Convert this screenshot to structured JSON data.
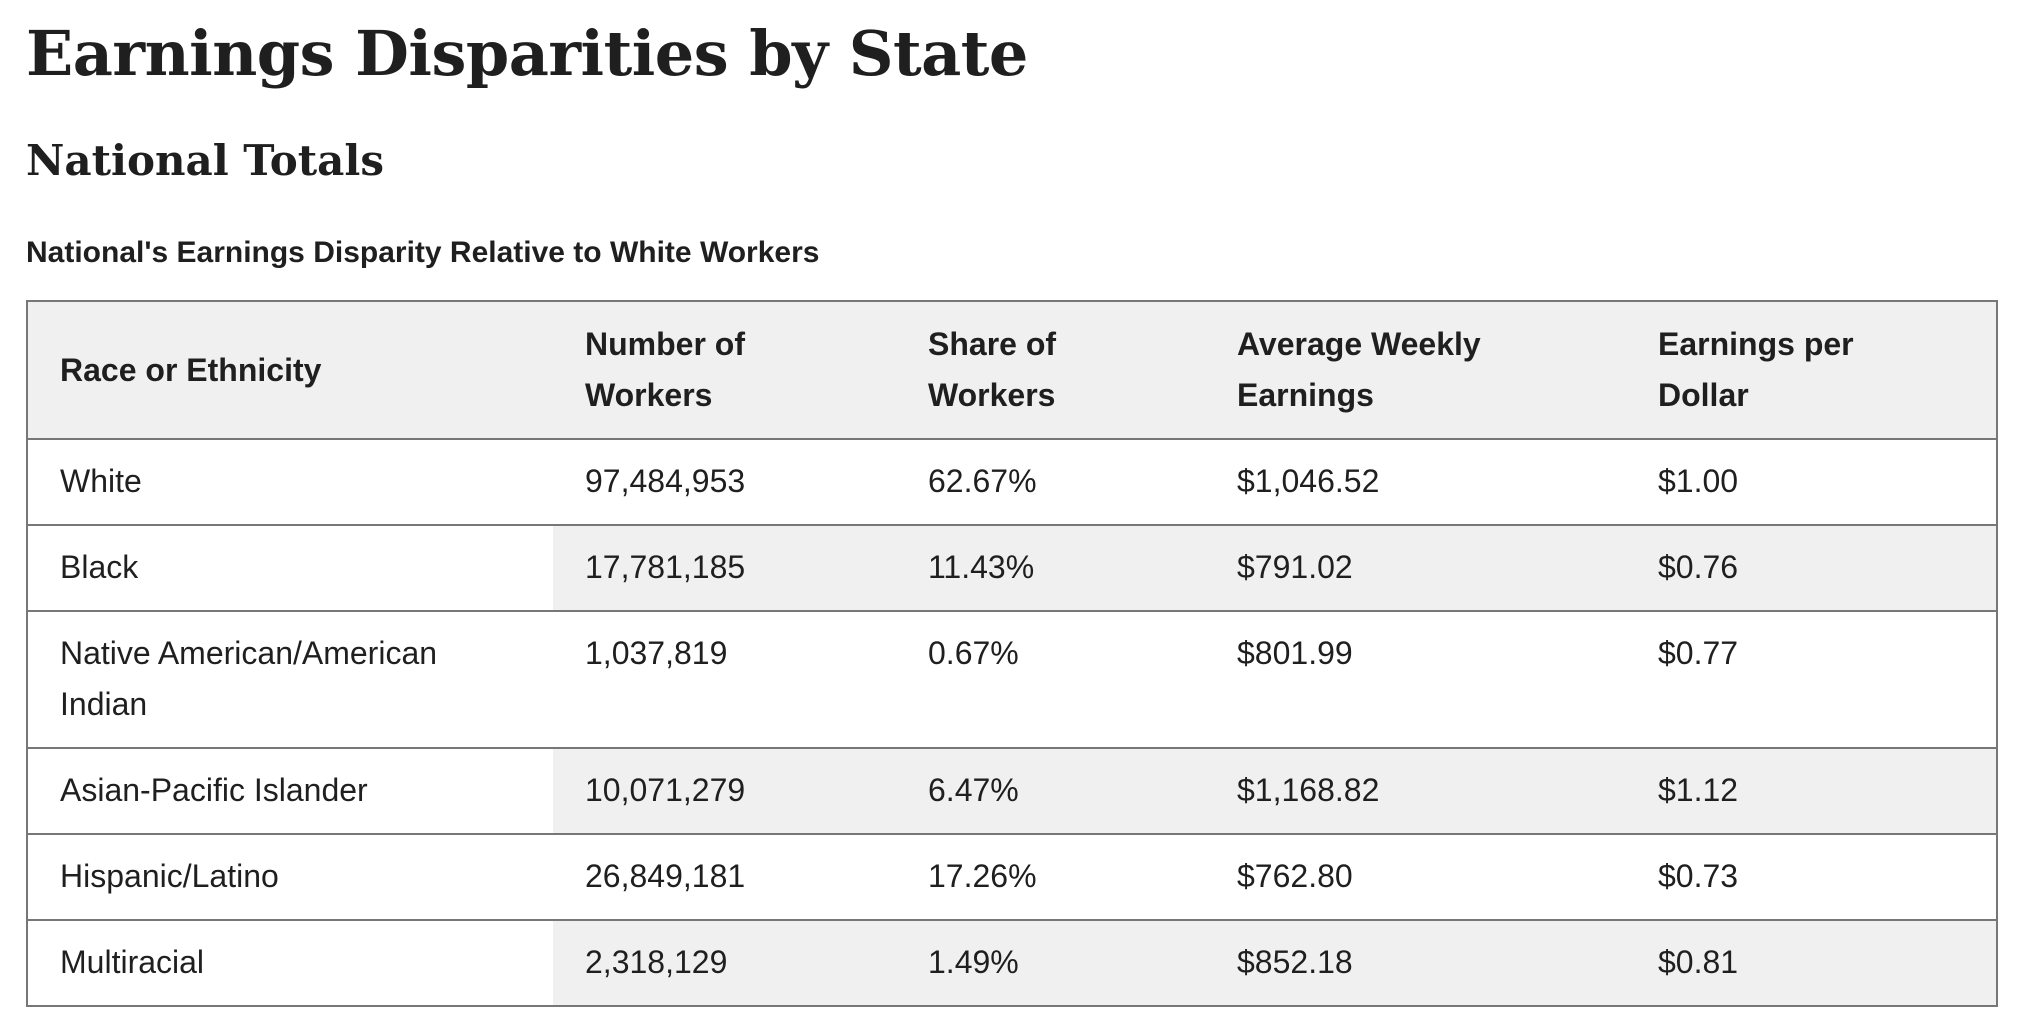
{
  "page": {
    "title": "Earnings Disparities by State",
    "section_title": "National Totals",
    "table_caption": "National's Earnings Disparity Relative to White Workers"
  },
  "table": {
    "headers": {
      "race": "Race or Ethnicity",
      "workers_line1": "Number of",
      "workers_line2": "Workers",
      "share_line1": "Share of",
      "share_line2": "Workers",
      "earnings_line1": "Average Weekly",
      "earnings_line2": "Earnings",
      "per_dollar_line1": "Earnings per",
      "per_dollar_line2": "Dollar"
    },
    "rows": [
      {
        "race": "White",
        "workers": "97,484,953",
        "share": "62.67%",
        "earnings": "$1,046.52",
        "per_dollar": "$1.00"
      },
      {
        "race": "Black",
        "workers": "17,781,185",
        "share": "11.43%",
        "earnings": "$791.02",
        "per_dollar": "$0.76"
      },
      {
        "race": "Native American/American Indian",
        "workers": "1,037,819",
        "share": "0.67%",
        "earnings": "$801.99",
        "per_dollar": "$0.77"
      },
      {
        "race": "Asian-Pacific Islander",
        "workers": "10,071,279",
        "share": "6.47%",
        "earnings": "$1,168.82",
        "per_dollar": "$1.12"
      },
      {
        "race": "Hispanic/Latino",
        "workers": "26,849,181",
        "share": "17.26%",
        "earnings": "$762.80",
        "per_dollar": "$0.73"
      },
      {
        "race": "Multiracial",
        "workers": "2,318,129",
        "share": "1.49%",
        "earnings": "$852.18",
        "per_dollar": "$0.81"
      }
    ]
  },
  "colors": {
    "text": "#222222",
    "header_bg": "#f0f0f0",
    "stripe_bg": "#f0f0f0",
    "border": "#777777"
  }
}
